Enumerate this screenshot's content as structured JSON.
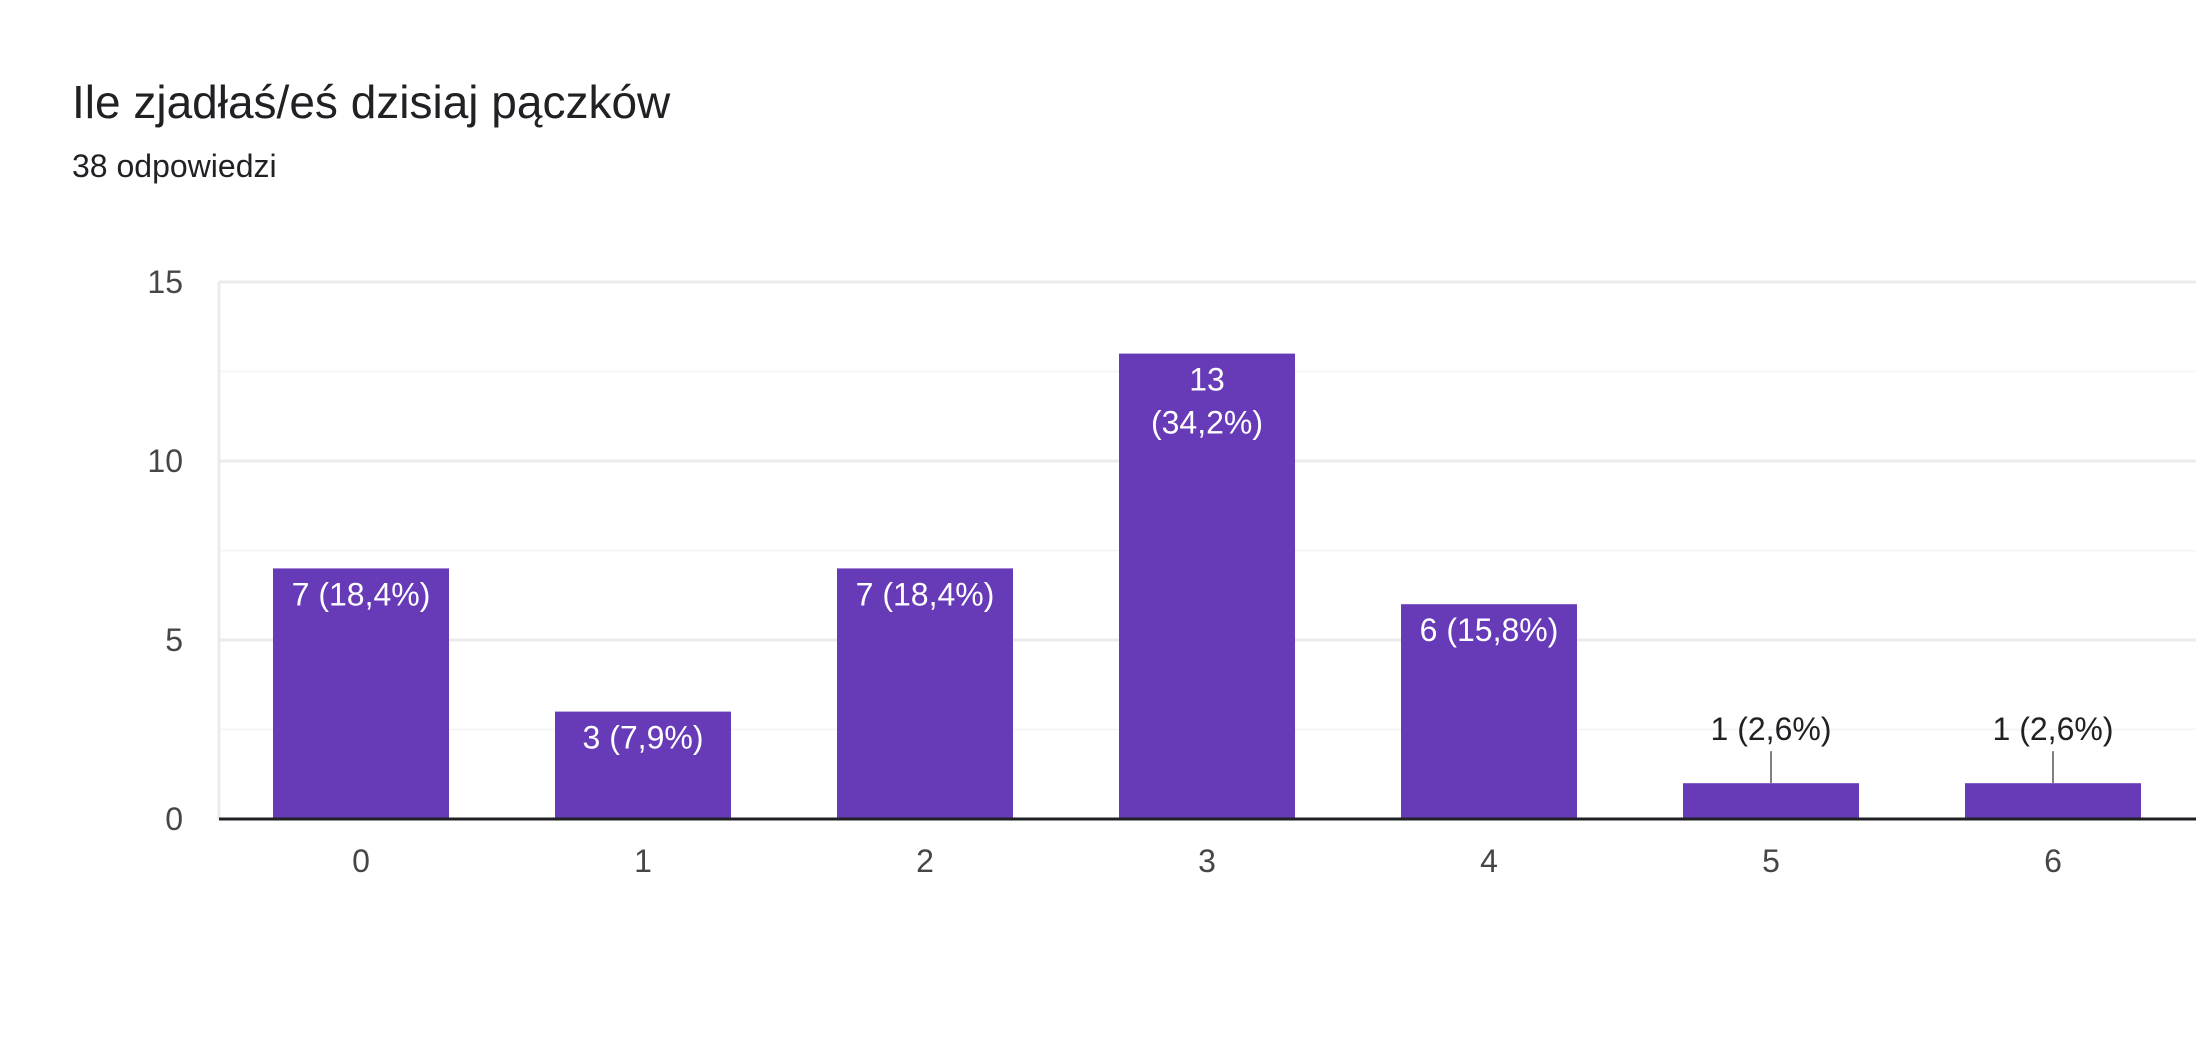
{
  "header": {
    "title": "Ile zjadłaś/eś dzisiaj pączków",
    "subtitle": "38 odpowiedzi"
  },
  "colors": {
    "bar": "#673ab7",
    "grid": "#ebebeb",
    "minor_grid": "#f5f5f5",
    "axis": "#202124",
    "label_inside": "#ffffff",
    "label_outside": "#202124",
    "leader": "#7f7f7f"
  },
  "chart_data": {
    "type": "bar",
    "categories": [
      "0",
      "1",
      "2",
      "3",
      "4",
      "5",
      "6"
    ],
    "values": [
      7,
      3,
      7,
      13,
      6,
      1,
      1
    ],
    "data_labels": [
      [
        "7 (18,4%)"
      ],
      [
        "3 (7,9%)"
      ],
      [
        "7 (18,4%)"
      ],
      [
        "13",
        "(34,2%)"
      ],
      [
        "6 (15,8%)"
      ],
      [
        "1 (2,6%)"
      ],
      [
        "1 (2,6%)"
      ]
    ],
    "title": "Ile zjadłaś/eś dzisiaj pączków",
    "subtitle": "38 odpowiedzi",
    "ylim": [
      0,
      15
    ],
    "yticks": [
      0,
      5,
      10,
      15
    ],
    "grid": true,
    "legend": "none"
  }
}
